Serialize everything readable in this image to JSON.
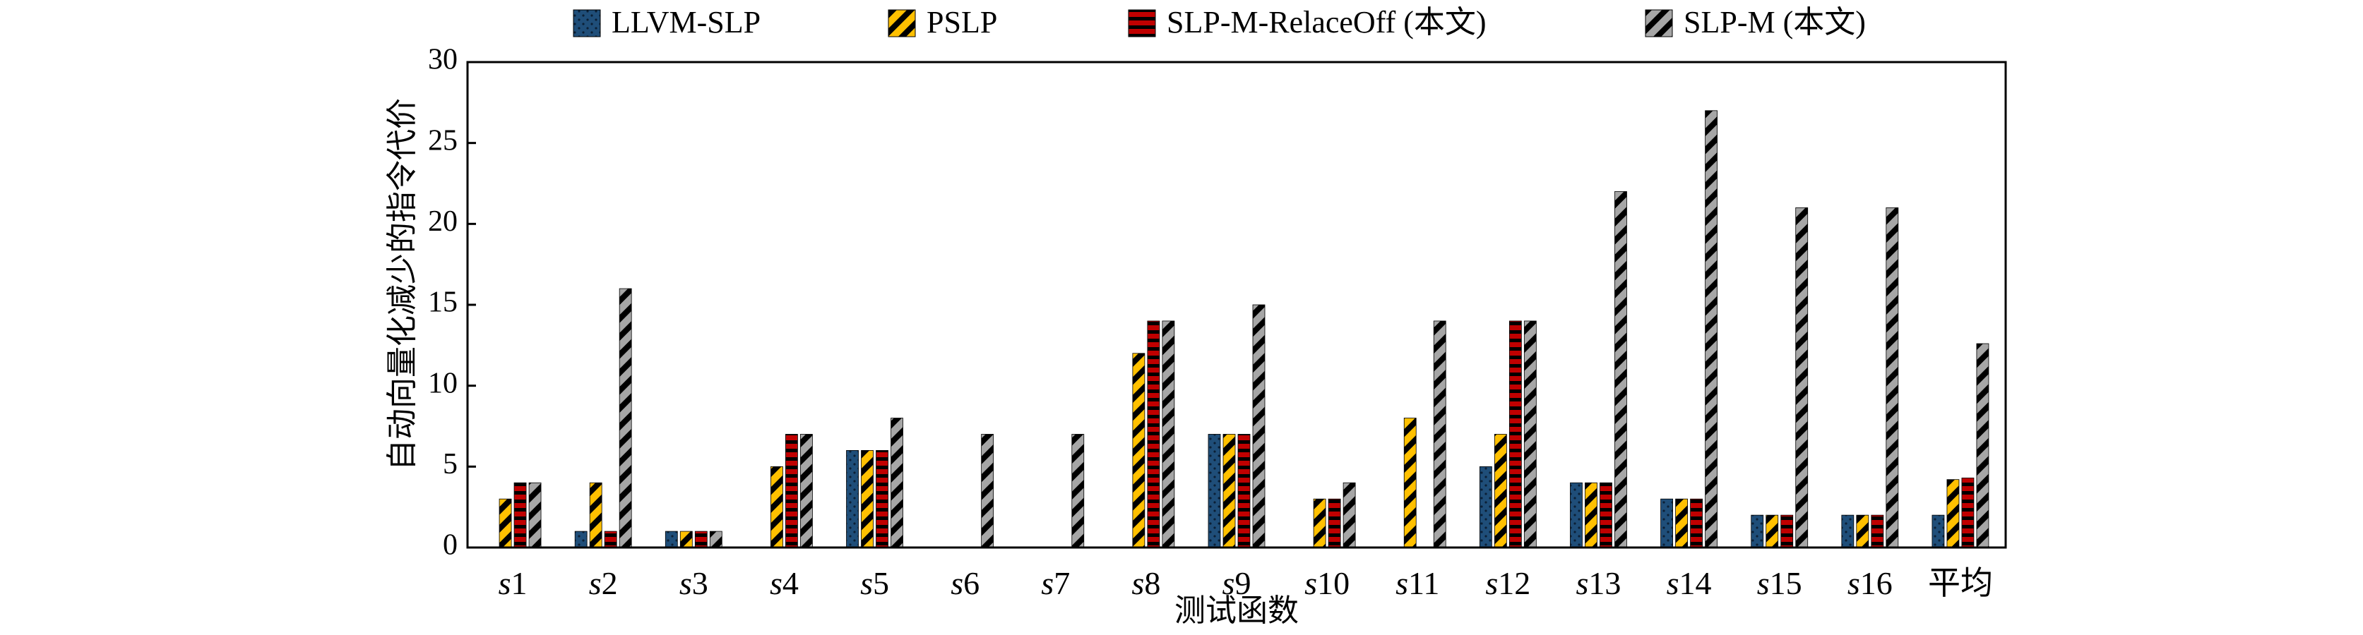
{
  "chart_data": {
    "type": "bar",
    "xlabel": "测试函数",
    "ylabel": "自动向量化减少的指令代价",
    "ylim": [
      0,
      30
    ],
    "yticks": [
      0,
      5,
      10,
      15,
      20,
      25,
      30
    ],
    "grid": false,
    "legend_position": "top",
    "categories": [
      {
        "prefix": "s",
        "num": "1"
      },
      {
        "prefix": "s",
        "num": "2"
      },
      {
        "prefix": "s",
        "num": "3"
      },
      {
        "prefix": "s",
        "num": "4"
      },
      {
        "prefix": "s",
        "num": "5"
      },
      {
        "prefix": "s",
        "num": "6"
      },
      {
        "prefix": "s",
        "num": "7"
      },
      {
        "prefix": "s",
        "num": "8"
      },
      {
        "prefix": "s",
        "num": "9"
      },
      {
        "prefix": "s",
        "num": "10"
      },
      {
        "prefix": "s",
        "num": "11"
      },
      {
        "prefix": "s",
        "num": "12"
      },
      {
        "prefix": "s",
        "num": "13"
      },
      {
        "prefix": "s",
        "num": "14"
      },
      {
        "prefix": "s",
        "num": "15"
      },
      {
        "prefix": "s",
        "num": "16"
      },
      {
        "prefix": "",
        "num": "平均"
      }
    ],
    "series": [
      {
        "name": "LLVM-SLP",
        "color": "#1f4e79",
        "pattern": "dots",
        "values": [
          0,
          1,
          1,
          0,
          6,
          0,
          0,
          0,
          7,
          0,
          0,
          5,
          4,
          3,
          2,
          2,
          2
        ]
      },
      {
        "name": "PSLP",
        "color": "#ffc000",
        "pattern": "diagonal-stripes",
        "values": [
          3,
          4,
          1,
          5,
          6,
          0,
          0,
          12,
          7,
          3,
          8,
          7,
          4,
          3,
          2,
          2,
          4.2
        ]
      },
      {
        "name": "SLP-M-RelaceOff (本文)",
        "color": "#c00000",
        "pattern": "horizontal-stripes",
        "values": [
          4,
          1,
          1,
          7,
          6,
          0,
          0,
          14,
          7,
          3,
          0,
          14,
          4,
          3,
          2,
          2,
          4.3
        ]
      },
      {
        "name": "SLP-M (本文)",
        "color": "#a6a6a6",
        "pattern": "diagonal-stripes",
        "values": [
          4,
          16,
          1,
          7,
          8,
          7,
          7,
          14,
          15,
          4,
          14,
          14,
          22,
          27,
          21,
          21,
          12.6
        ]
      }
    ]
  }
}
